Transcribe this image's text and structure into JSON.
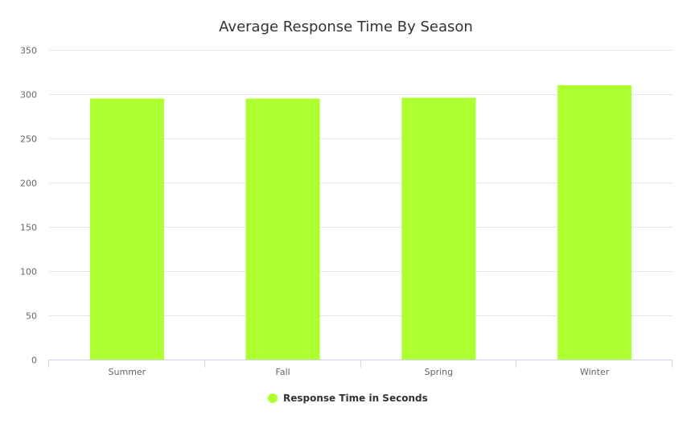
{
  "chart_data": {
    "type": "bar",
    "title": "Average Response Time By Season",
    "xlabel": "",
    "ylabel": "",
    "categories": [
      "Summer",
      "Fall",
      "Spring",
      "Winter"
    ],
    "series": [
      {
        "name": "Response Time in Seconds",
        "values": [
          295,
          295,
          296,
          310
        ],
        "color": "#adff2f"
      }
    ],
    "ylim": [
      0,
      350
    ],
    "yticks": [
      0,
      50,
      100,
      150,
      200,
      250,
      300,
      350
    ],
    "grid": true,
    "legend": "bottom-center"
  }
}
